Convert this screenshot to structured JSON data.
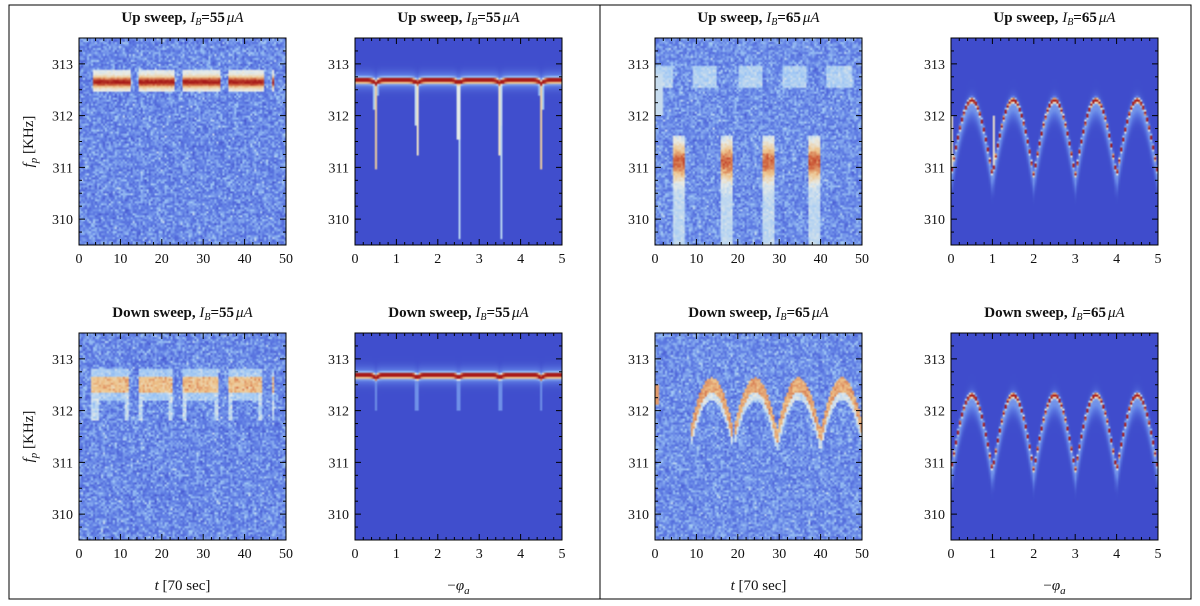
{
  "figure": {
    "xlabel_time": "t [70 sec]",
    "xlabel_phase": "−φa",
    "ylabel": "fp [KHz]",
    "ylabel_main": "f",
    "ylabel_sub": "p",
    "ylabel_unit": " [KHz]",
    "xlabel_time_var": "t",
    "xlabel_time_unit": " [70 sec]",
    "xlabel_phase_sign": "−",
    "xlabel_phase_var": "φ",
    "xlabel_phase_sub": "a"
  },
  "chart_data": [
    {
      "id": "p1",
      "type": "heatmap",
      "kind": "measured",
      "title": "Up sweep, IB=55 μA",
      "title_sweep": "Up sweep,",
      "title_value": "=55",
      "ib_uA": 55,
      "sweep": "up",
      "xlim": [
        0,
        50
      ],
      "ylim": [
        309.5,
        313.5
      ],
      "xticks": [
        0,
        10,
        20,
        30,
        40,
        50
      ],
      "yticks": [
        310,
        311,
        312,
        313
      ]
    },
    {
      "id": "p2",
      "type": "heatmap",
      "kind": "simulated",
      "title": "Up sweep, IB=55 μA",
      "title_sweep": "Up sweep,",
      "title_value": "=55",
      "ib_uA": 55,
      "sweep": "up",
      "xlim": [
        0,
        5
      ],
      "ylim": [
        309.5,
        313.5
      ],
      "xticks": [
        0,
        1,
        2,
        3,
        4,
        5
      ],
      "yticks": [
        310,
        311,
        312,
        313
      ]
    },
    {
      "id": "p3",
      "type": "heatmap",
      "kind": "measured",
      "title": "Up sweep, IB=65 μA",
      "title_sweep": "Up sweep,",
      "title_value": "=65",
      "ib_uA": 65,
      "sweep": "up",
      "xlim": [
        0,
        50
      ],
      "ylim": [
        309.5,
        313.5
      ],
      "xticks": [
        0,
        10,
        20,
        30,
        40,
        50
      ],
      "yticks": [
        310,
        311,
        312,
        313
      ]
    },
    {
      "id": "p4",
      "type": "heatmap",
      "kind": "simulated",
      "title": "Up sweep, IB=65 μA",
      "title_sweep": "Up sweep,",
      "title_value": "=65",
      "ib_uA": 65,
      "sweep": "up",
      "xlim": [
        0,
        5
      ],
      "ylim": [
        309.5,
        313.5
      ],
      "xticks": [
        0,
        1,
        2,
        3,
        4,
        5
      ],
      "yticks": [
        310,
        311,
        312,
        313
      ]
    },
    {
      "id": "p5",
      "type": "heatmap",
      "kind": "measured",
      "title": "Down sweep, IB=55 μA",
      "title_sweep": "Down sweep,",
      "title_value": "=55",
      "ib_uA": 55,
      "sweep": "down",
      "xlim": [
        0,
        50
      ],
      "ylim": [
        309.5,
        313.5
      ],
      "xticks": [
        0,
        10,
        20,
        30,
        40,
        50
      ],
      "yticks": [
        310,
        311,
        312,
        313
      ]
    },
    {
      "id": "p6",
      "type": "heatmap",
      "kind": "simulated",
      "title": "Down sweep, IB=55 μA",
      "title_sweep": "Down sweep,",
      "title_value": "=55",
      "ib_uA": 55,
      "sweep": "down",
      "xlim": [
        0,
        5
      ],
      "ylim": [
        309.5,
        313.5
      ],
      "xticks": [
        0,
        1,
        2,
        3,
        4,
        5
      ],
      "yticks": [
        310,
        311,
        312,
        313
      ]
    },
    {
      "id": "p7",
      "type": "heatmap",
      "kind": "measured",
      "title": "Down sweep, IB=65 μA",
      "title_sweep": "Down sweep,",
      "title_value": "=65",
      "ib_uA": 65,
      "sweep": "down",
      "xlim": [
        0,
        50
      ],
      "ylim": [
        309.5,
        313.5
      ],
      "xticks": [
        0,
        10,
        20,
        30,
        40,
        50
      ],
      "yticks": [
        310,
        311,
        312,
        313
      ]
    },
    {
      "id": "p8",
      "type": "heatmap",
      "kind": "simulated",
      "title": "Down sweep, IB=65 μA",
      "title_sweep": "Down sweep,",
      "title_value": "=65",
      "ib_uA": 65,
      "sweep": "down",
      "xlim": [
        0,
        5
      ],
      "ylim": [
        309.5,
        313.5
      ],
      "xticks": [
        0,
        1,
        2,
        3,
        4,
        5
      ],
      "yticks": [
        310,
        311,
        312,
        313
      ]
    }
  ],
  "colors": {
    "bg_blue": "#3a45c8",
    "frame": "#000000",
    "ridge": "#b8221a"
  }
}
